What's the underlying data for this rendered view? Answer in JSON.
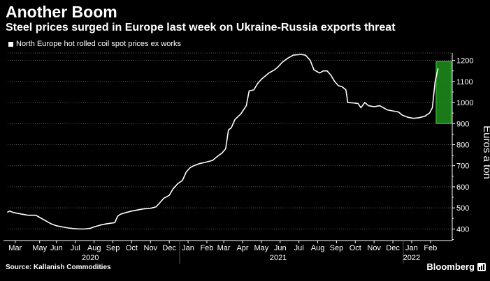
{
  "header": {
    "title": "Another Boom",
    "subtitle": "Steel prices surged in Europe last week on Ukraine-Russia exports threat"
  },
  "footer": {
    "source": "Source: Kallanish Commodities",
    "brand": "Bloomberg"
  },
  "colors": {
    "background": "#000000",
    "line": "#ffffff",
    "grid": "#5a5a5a",
    "highlight_fill": "#1f8f1f",
    "highlight_border": "#3ecf3e"
  },
  "chart_data": {
    "type": "line",
    "title": "Another Boom",
    "subtitle": "Steel prices surged in Europe last week on Ukraine-Russia exports threat",
    "legend": "North Europe hot rolled coil spot prices ex works",
    "ylabel": "Euros a ton",
    "xlabel": "",
    "ylim": [
      345,
      1235
    ],
    "yticks": [
      400,
      500,
      600,
      700,
      800,
      900,
      1000,
      1100,
      1200
    ],
    "grid": true,
    "legend_position": "top-left",
    "x_range": [
      0,
      23.4
    ],
    "x_months": [
      {
        "t": 0.4,
        "label": "Mar"
      },
      {
        "t": 1.7,
        "label": "May"
      },
      {
        "t": 2.6,
        "label": "Jun"
      },
      {
        "t": 3.6,
        "label": "Jul"
      },
      {
        "t": 4.6,
        "label": "Aug"
      },
      {
        "t": 5.6,
        "label": "Sep"
      },
      {
        "t": 6.6,
        "label": "Oct"
      },
      {
        "t": 7.6,
        "label": "Nov"
      },
      {
        "t": 8.6,
        "label": "Dec"
      },
      {
        "t": 9.6,
        "label": "Jan"
      },
      {
        "t": 10.6,
        "label": "Feb"
      },
      {
        "t": 11.5,
        "label": "Mar"
      },
      {
        "t": 12.5,
        "label": "Apr"
      },
      {
        "t": 13.5,
        "label": "May"
      },
      {
        "t": 14.5,
        "label": "Jun"
      },
      {
        "t": 15.5,
        "label": "Jul"
      },
      {
        "t": 16.5,
        "label": "Aug"
      },
      {
        "t": 17.5,
        "label": "Sep"
      },
      {
        "t": 18.5,
        "label": "Oct"
      },
      {
        "t": 19.5,
        "label": "Nov"
      },
      {
        "t": 20.5,
        "label": "Dec"
      },
      {
        "t": 21.5,
        "label": "Jan"
      },
      {
        "t": 22.5,
        "label": "Feb"
      }
    ],
    "x_years": [
      {
        "t": 4.4,
        "label": "2020"
      },
      {
        "t": 14.4,
        "label": "2021"
      },
      {
        "t": 21.5,
        "label": "2022"
      }
    ],
    "year_boundaries": [
      9.15,
      21.05
    ],
    "highlight": {
      "t_start": 22.8,
      "t_end": 23.6,
      "y_start": 900,
      "y_end": 1195
    },
    "series": [
      {
        "name": "North Europe hot rolled coil spot prices ex works",
        "points": [
          [
            0.0,
            480
          ],
          [
            0.1,
            485
          ],
          [
            0.3,
            478
          ],
          [
            0.6,
            473
          ],
          [
            0.9,
            468
          ],
          [
            1.1,
            465
          ],
          [
            1.5,
            465
          ],
          [
            1.7,
            455
          ],
          [
            2.0,
            440
          ],
          [
            2.3,
            425
          ],
          [
            2.6,
            415
          ],
          [
            2.9,
            410
          ],
          [
            3.2,
            405
          ],
          [
            3.5,
            402
          ],
          [
            3.8,
            400
          ],
          [
            4.1,
            400
          ],
          [
            4.4,
            403
          ],
          [
            4.6,
            410
          ],
          [
            4.8,
            415
          ],
          [
            5.0,
            420
          ],
          [
            5.3,
            425
          ],
          [
            5.7,
            430
          ],
          [
            5.85,
            460
          ],
          [
            6.0,
            470
          ],
          [
            6.3,
            478
          ],
          [
            6.6,
            485
          ],
          [
            6.9,
            490
          ],
          [
            7.2,
            495
          ],
          [
            7.6,
            498
          ],
          [
            7.9,
            505
          ],
          [
            8.1,
            525
          ],
          [
            8.3,
            545
          ],
          [
            8.6,
            560
          ],
          [
            8.8,
            590
          ],
          [
            9.05,
            615
          ],
          [
            9.3,
            630
          ],
          [
            9.5,
            670
          ],
          [
            9.7,
            690
          ],
          [
            9.9,
            700
          ],
          [
            10.2,
            710
          ],
          [
            10.6,
            718
          ],
          [
            10.9,
            725
          ],
          [
            11.1,
            740
          ],
          [
            11.4,
            760
          ],
          [
            11.6,
            780
          ],
          [
            11.75,
            870
          ],
          [
            11.9,
            880
          ],
          [
            12.1,
            920
          ],
          [
            12.4,
            945
          ],
          [
            12.7,
            985
          ],
          [
            12.85,
            1055
          ],
          [
            13.1,
            1060
          ],
          [
            13.3,
            1090
          ],
          [
            13.5,
            1110
          ],
          [
            13.7,
            1125
          ],
          [
            13.9,
            1140
          ],
          [
            14.2,
            1155
          ],
          [
            14.4,
            1170
          ],
          [
            14.6,
            1190
          ],
          [
            14.9,
            1210
          ],
          [
            15.2,
            1225
          ],
          [
            15.6,
            1228
          ],
          [
            15.85,
            1225
          ],
          [
            16.1,
            1200
          ],
          [
            16.3,
            1155
          ],
          [
            16.6,
            1140
          ],
          [
            16.8,
            1150
          ],
          [
            17.0,
            1150
          ],
          [
            17.2,
            1130
          ],
          [
            17.4,
            1100
          ],
          [
            17.6,
            1080
          ],
          [
            17.8,
            1075
          ],
          [
            18.0,
            1060
          ],
          [
            18.1,
            1000
          ],
          [
            18.4,
            998
          ],
          [
            18.65,
            995
          ],
          [
            18.8,
            975
          ],
          [
            19.0,
            1000
          ],
          [
            19.2,
            985
          ],
          [
            19.5,
            980
          ],
          [
            19.8,
            985
          ],
          [
            20.0,
            975
          ],
          [
            20.2,
            965
          ],
          [
            20.5,
            960
          ],
          [
            20.8,
            955
          ],
          [
            21.0,
            940
          ],
          [
            21.3,
            930
          ],
          [
            21.6,
            925
          ],
          [
            21.9,
            928
          ],
          [
            22.2,
            935
          ],
          [
            22.45,
            950
          ],
          [
            22.6,
            975
          ],
          [
            22.75,
            1100
          ],
          [
            22.9,
            1160
          ]
        ]
      }
    ]
  }
}
